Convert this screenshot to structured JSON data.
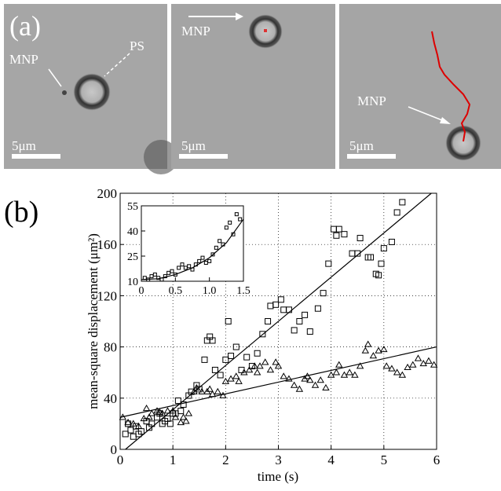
{
  "panel_a": {
    "label": "(a)",
    "images": [
      {
        "labels": [
          "MNP",
          "PS"
        ],
        "scale_bar": "5μm"
      },
      {
        "labels": [
          "MNP"
        ],
        "scale_bar": "5μm"
      },
      {
        "labels": [
          "MNP"
        ],
        "scale_bar": "5μm"
      }
    ]
  },
  "chart_data": {
    "type": "scatter",
    "panel_label": "(b)",
    "xlabel": "time (s)",
    "ylabel": "mean-square displacement (μm²)",
    "xlim": [
      0,
      6
    ],
    "ylim": [
      0,
      200
    ],
    "xticks": [
      0,
      1,
      2,
      3,
      4,
      5,
      6
    ],
    "yticks": [
      0,
      40,
      80,
      120,
      160,
      200
    ],
    "grid": true,
    "series": [
      {
        "marker": "square",
        "color": "#000000",
        "x": [
          0.1,
          0.15,
          0.2,
          0.25,
          0.3,
          0.35,
          0.4,
          0.5,
          0.55,
          0.6,
          0.7,
          0.75,
          0.8,
          0.85,
          0.9,
          0.95,
          1.0,
          1.05,
          1.1,
          1.15,
          1.2,
          1.3,
          1.35,
          1.45,
          1.5,
          1.6,
          1.65,
          1.7,
          1.75,
          1.8,
          1.9,
          2.0,
          2.05,
          2.1,
          2.2,
          2.3,
          2.4,
          2.5,
          2.6,
          2.7,
          2.8,
          2.85,
          2.95,
          3.05,
          3.1,
          3.2,
          3.3,
          3.4,
          3.5,
          3.6,
          3.75,
          3.85,
          3.95,
          4.05,
          4.1,
          4.15,
          4.25,
          4.4,
          4.5,
          4.55,
          4.7,
          4.75,
          4.85,
          4.9,
          4.95,
          5.0,
          5.15,
          5.25,
          5.35
        ],
        "values": [
          12,
          20,
          15,
          10,
          18,
          12,
          14,
          22,
          17,
          20,
          25,
          28,
          20,
          22,
          24,
          20,
          28,
          28,
          38,
          30,
          35,
          42,
          45,
          50,
          47,
          70,
          85,
          88,
          85,
          62,
          58,
          70,
          100,
          73,
          80,
          62,
          72,
          65,
          75,
          90,
          100,
          112,
          113,
          117,
          109,
          109,
          93,
          100,
          105,
          92,
          110,
          122,
          145,
          172,
          167,
          172,
          168,
          153,
          153,
          165,
          150,
          150,
          137,
          136,
          145,
          157,
          162,
          185,
          193
        ]
      },
      {
        "marker": "triangle",
        "color": "#000000",
        "x": [
          0.05,
          0.15,
          0.25,
          0.35,
          0.45,
          0.5,
          0.55,
          0.6,
          0.7,
          0.75,
          0.8,
          0.9,
          1.0,
          1.05,
          1.15,
          1.2,
          1.25,
          1.3,
          1.4,
          1.45,
          1.55,
          1.65,
          1.7,
          1.75,
          1.85,
          1.95,
          2.0,
          2.1,
          2.2,
          2.25,
          2.35,
          2.45,
          2.55,
          2.6,
          2.65,
          2.75,
          2.85,
          2.95,
          3.0,
          3.1,
          3.2,
          3.3,
          3.4,
          3.5,
          3.55,
          3.6,
          3.7,
          3.8,
          3.9,
          4.0,
          4.1,
          4.15,
          4.25,
          4.35,
          4.45,
          4.55,
          4.65,
          4.7,
          4.8,
          4.9,
          5.0,
          5.05,
          5.15,
          5.25,
          5.35,
          5.45,
          5.55,
          5.65,
          5.75,
          5.85,
          5.95
        ],
        "values": [
          25,
          21,
          20,
          18,
          24,
          32,
          25,
          28,
          30,
          29,
          28,
          30,
          30,
          25,
          21,
          25,
          22,
          28,
          45,
          48,
          45,
          45,
          47,
          43,
          45,
          42,
          53,
          55,
          57,
          53,
          60,
          62,
          65,
          60,
          65,
          68,
          62,
          68,
          65,
          57,
          55,
          50,
          47,
          55,
          57,
          54,
          50,
          54,
          48,
          58,
          60,
          66,
          58,
          60,
          58,
          65,
          77,
          82,
          73,
          77,
          78,
          65,
          63,
          60,
          58,
          64,
          66,
          71,
          67,
          69,
          66
        ]
      }
    ],
    "fits": [
      {
        "x": [
          0.1,
          5.9
        ],
        "values": [
          0,
          200
        ]
      },
      {
        "x": [
          0,
          6
        ],
        "values": [
          25,
          80
        ]
      }
    ],
    "inset": {
      "xlim": [
        0,
        1.5
      ],
      "ylim": [
        10,
        55
      ],
      "xticks": [
        0,
        0.5,
        {
          "value": 1,
          "label": "1.0"
        },
        1.5
      ],
      "yticks": [
        10,
        25,
        40,
        55
      ],
      "series": [
        {
          "marker": "square",
          "color": "#000000",
          "x": [
            0.05,
            0.1,
            0.15,
            0.2,
            0.25,
            0.3,
            0.35,
            0.4,
            0.45,
            0.5,
            0.55,
            0.6,
            0.65,
            0.7,
            0.75,
            0.8,
            0.85,
            0.9,
            0.95,
            1.0,
            1.05,
            1.1,
            1.15,
            1.2,
            1.25,
            1.3,
            1.35,
            1.4,
            1.45
          ],
          "values": [
            12,
            11,
            13,
            14,
            12,
            11,
            13,
            15,
            16,
            14,
            18,
            20,
            18,
            19,
            17,
            20,
            22,
            24,
            21,
            22,
            26,
            30,
            34,
            32,
            42,
            45,
            38,
            50,
            47
          ]
        }
      ],
      "fit": {
        "x": [
          0,
          0.25,
          0.5,
          0.75,
          1,
          1.25,
          1.5
        ],
        "values": [
          11,
          11.5,
          14,
          18,
          24,
          33,
          47
        ]
      }
    }
  }
}
